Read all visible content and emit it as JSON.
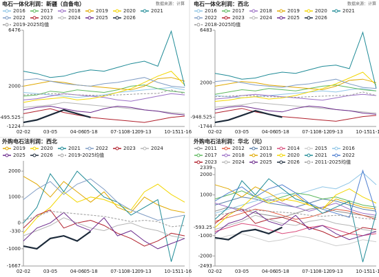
{
  "chart_data": [
    {
      "type": "line",
      "title": "电石一体化利润：新疆（自备电）",
      "source": "数据来源：计算",
      "categories": [
        "02-02",
        null,
        "03-05",
        null,
        "04-06",
        "05-18",
        null,
        "07-11",
        "08-12",
        "09-13",
        null,
        "10-15",
        "11-16"
      ],
      "ylim": [
        -1224,
        6476
      ],
      "yticks": [
        -1224,
        -495.525,
        2000,
        6476
      ],
      "series": [
        {
          "name": "2016",
          "color": "#8ec5e6",
          "values": [
            1500,
            1400,
            1300,
            1200,
            1100,
            1200,
            1300,
            1500,
            1600,
            1700,
            1800,
            1900,
            1700
          ]
        },
        {
          "name": "2017",
          "color": "#5cb85c",
          "values": [
            1200,
            1300,
            1600,
            1500,
            1700,
            1600,
            1500,
            1700,
            2000,
            2100,
            1800,
            1600,
            1500
          ]
        },
        {
          "name": "2018",
          "color": "#9b6fc6",
          "values": [
            900,
            1000,
            1200,
            1400,
            1300,
            1200,
            1100,
            900,
            800,
            1000,
            1200,
            1400,
            1300
          ]
        },
        {
          "name": "2019",
          "color": "#e0a800",
          "values": [
            2000,
            2200,
            2400,
            2300,
            2100,
            2000,
            1900,
            1800,
            1700,
            2000,
            2600,
            2700,
            2400
          ]
        },
        {
          "name": "2020",
          "color": "#f2d600",
          "values": [
            700,
            900,
            1000,
            1100,
            900,
            1000,
            1200,
            1500,
            1800,
            2300,
            2800,
            3200,
            2100
          ]
        },
        {
          "name": "2021",
          "color": "#1e8a96",
          "values": [
            3200,
            3000,
            2700,
            2800,
            3100,
            3300,
            3200,
            3500,
            3800,
            4000,
            3600,
            6400,
            2000
          ]
        },
        {
          "name": "2022",
          "color": "#7f9cc4",
          "values": [
            2500,
            2600,
            2400,
            2200,
            2100,
            2000,
            2200,
            2300,
            2500,
            2700,
            2300,
            2000,
            1900
          ]
        },
        {
          "name": "2023",
          "color": "#b01e2a",
          "values": [
            -200,
            0,
            200,
            -100,
            -300,
            -500,
            -600,
            -700,
            -800,
            -900,
            -700,
            -500,
            -400
          ]
        },
        {
          "name": "2024",
          "color": "#b5b5b5",
          "values": [
            300,
            400,
            500,
            700,
            600,
            500,
            400,
            300,
            200,
            100,
            0,
            -100,
            -200
          ]
        },
        {
          "name": "2025",
          "color": "#6b2a8c",
          "values": [
            100,
            300,
            400,
            200,
            0,
            -100,
            200,
            400,
            300,
            100,
            0,
            -200,
            -300
          ]
        },
        {
          "name": "2026",
          "color": "#1c2a3a",
          "values": [
            -900,
            -700,
            -300,
            100,
            -200,
            -495.525,
            null,
            null,
            null,
            null,
            null,
            null,
            null
          ]
        },
        {
          "name": "2019-2025均值",
          "color": "#999999",
          "dash": true,
          "values": [
            1300,
            1350,
            1400,
            1380,
            1300,
            1280,
            1250,
            1300,
            1350,
            1400,
            1420,
            1700,
            1400
          ]
        }
      ]
    },
    {
      "type": "line",
      "title": "电石一体化利润：西北",
      "source": "数据来源：计算",
      "categories": [
        "02-02",
        null,
        "03-05",
        null,
        "04-06",
        "05-18",
        null,
        "07-11",
        "08-12",
        "09-13",
        null,
        "10-15",
        "11-16"
      ],
      "ylim": [
        -1744,
        6483
      ],
      "yticks": [
        -1744,
        -948.525,
        2000,
        6483
      ],
      "series": [
        {
          "name": "2016",
          "color": "#8ec5e6",
          "values": [
            900,
            800,
            700,
            800,
            900,
            1000,
            1100,
            1200,
            1300,
            1200,
            1400,
            1500,
            1300
          ]
        },
        {
          "name": "2017",
          "color": "#5cb85c",
          "values": [
            1000,
            1200,
            1400,
            1300,
            1500,
            1400,
            1300,
            1500,
            1700,
            1800,
            1600,
            1400,
            1300
          ]
        },
        {
          "name": "2018",
          "color": "#9b6fc6",
          "values": [
            600,
            700,
            900,
            1000,
            900,
            800,
            700,
            600,
            500,
            700,
            900,
            1000,
            900
          ]
        },
        {
          "name": "2019",
          "color": "#e0a800",
          "values": [
            1700,
            1900,
            2100,
            2000,
            1800,
            1700,
            1600,
            1500,
            1400,
            1700,
            2200,
            2300,
            2000
          ]
        },
        {
          "name": "2020",
          "color": "#f2d600",
          "values": [
            400,
            500,
            700,
            800,
            600,
            700,
            900,
            1200,
            1500,
            1900,
            2400,
            2900,
            1800
          ]
        },
        {
          "name": "2021",
          "color": "#1e8a96",
          "values": [
            2800,
            2600,
            2300,
            2400,
            2700,
            2900,
            2800,
            3100,
            3400,
            3500,
            3200,
            6300,
            1500
          ]
        },
        {
          "name": "2022",
          "color": "#7f9cc4",
          "values": [
            2100,
            2200,
            2000,
            1800,
            1700,
            1600,
            1800,
            1900,
            2100,
            2300,
            1900,
            1600,
            1500
          ]
        },
        {
          "name": "2023",
          "color": "#b01e2a",
          "values": [
            -600,
            -400,
            -200,
            -500,
            -700,
            -900,
            -1000,
            -1100,
            -1200,
            -1300,
            -1100,
            -900,
            -800
          ]
        },
        {
          "name": "2024",
          "color": "#b5b5b5",
          "values": [
            -100,
            0,
            100,
            300,
            200,
            100,
            0,
            -100,
            -200,
            -300,
            -400,
            -500,
            -600
          ]
        },
        {
          "name": "2025",
          "color": "#6b2a8c",
          "values": [
            -300,
            -100,
            0,
            -200,
            -400,
            -500,
            -200,
            0,
            -100,
            -300,
            -400,
            -600,
            -700
          ]
        },
        {
          "name": "2026",
          "color": "#1c2a3a",
          "values": [
            -1400,
            -1200,
            -800,
            -400,
            -700,
            -948.525,
            null,
            null,
            null,
            null,
            null,
            null,
            null
          ]
        },
        {
          "name": "2018-2025均值",
          "color": "#999999",
          "dash": true,
          "values": [
            800,
            850,
            900,
            880,
            800,
            780,
            750,
            800,
            850,
            900,
            920,
            1200,
            900
          ]
        }
      ]
    },
    {
      "type": "line",
      "title": "外购电石法利润：西北",
      "categories": [
        "02-02",
        null,
        "03-05",
        null,
        "04-06",
        "05-18",
        null,
        "07-11",
        "08-12",
        "09-13",
        null,
        "10-15",
        "11-16"
      ],
      "ylim": [
        -1667,
        2400
      ],
      "yticks": [
        -1667,
        -1000,
        -330,
        0,
        1000,
        2000
      ],
      "series": [
        {
          "name": "2019",
          "color": "#e0a800",
          "values": [
            1800,
            1500,
            1000,
            1600,
            1200,
            800,
            1200,
            600,
            400,
            1000,
            700,
            500,
            400
          ]
        },
        {
          "name": "2020",
          "color": "#f2d600",
          "values": [
            -400,
            200,
            600,
            1200,
            800,
            1000,
            900,
            700,
            500,
            1200,
            1500,
            1100,
            800
          ]
        },
        {
          "name": "2021",
          "color": "#1e8a96",
          "values": [
            0,
            600,
            1900,
            1200,
            2000,
            1500,
            1000,
            800,
            300,
            600,
            900,
            -1500,
            300
          ]
        },
        {
          "name": "2022",
          "color": "#7f9cc4",
          "values": [
            900,
            1300,
            1600,
            1100,
            1500,
            1700,
            1300,
            800,
            500,
            300,
            100,
            200,
            300
          ]
        },
        {
          "name": "2023",
          "color": "#b01e2a",
          "values": [
            -200,
            300,
            500,
            -200,
            0,
            100,
            -100,
            -400,
            -600,
            -900,
            -700,
            -400,
            -500
          ]
        },
        {
          "name": "2024",
          "color": "#b5b5b5",
          "values": [
            -500,
            -300,
            -100,
            200,
            0,
            -200,
            -300,
            -100,
            0,
            -200,
            -300,
            -500,
            -600
          ]
        },
        {
          "name": "2025",
          "color": "#6b2a8c",
          "values": [
            -700,
            -200,
            0,
            400,
            -100,
            -300,
            200,
            -500,
            -300,
            -700,
            -1000,
            -800,
            -600
          ]
        },
        {
          "name": "2026",
          "color": "#1c2a3a",
          "values": [
            -900,
            -1000,
            -600,
            -500,
            -700,
            -330,
            null,
            null,
            null,
            null,
            null,
            null,
            null
          ]
        },
        {
          "name": "2019-2025均值",
          "color": "#999999",
          "dash": true,
          "values": [
            100,
            250,
            450,
            400,
            350,
            300,
            250,
            150,
            50,
            100,
            50,
            -150,
            -100
          ]
        }
      ]
    },
    {
      "type": "line",
      "title": "外购电石法利润：华北（元）",
      "categories": [
        "02-02",
        null,
        "03-05",
        null,
        "04-06",
        "05-18",
        null,
        "07-11",
        "08-12",
        "09-13",
        null,
        "10-15",
        "11-16"
      ],
      "ylim": [
        -2493,
        2339
      ],
      "yticks": [
        -2493,
        -2000,
        -1000,
        -593.25,
        1000,
        2000,
        2339
      ],
      "series": [
        {
          "name": "2011",
          "color": "#8c8c8c",
          "values": [
            200,
            400,
            300,
            100,
            0,
            -100,
            100,
            300,
            400,
            200,
            100,
            0,
            -100
          ]
        },
        {
          "name": "2012",
          "color": "#e2583e",
          "values": [
            -300,
            -100,
            100,
            300,
            200,
            0,
            -200,
            -100,
            100,
            300,
            200,
            0,
            -200
          ]
        },
        {
          "name": "2013",
          "color": "#5a7fa8",
          "values": [
            500,
            700,
            900,
            800,
            600,
            500,
            400,
            600,
            800,
            700,
            500,
            300,
            200
          ]
        },
        {
          "name": "2014",
          "color": "#d94a7a",
          "values": [
            -800,
            -600,
            -400,
            -500,
            -700,
            -900,
            -800,
            -600,
            -500,
            -700,
            -900,
            -1000,
            -900
          ]
        },
        {
          "name": "2015",
          "color": "#cccccc",
          "values": [
            -1200,
            -1000,
            -900,
            -1100,
            -1300,
            -1200,
            -1000,
            -1100,
            -1300,
            -1500,
            -1400,
            -1200,
            -1300
          ]
        },
        {
          "name": "2016",
          "color": "#8ec5e6",
          "values": [
            100,
            300,
            500,
            700,
            900,
            1100,
            1000,
            1200,
            1400,
            1300,
            1600,
            2100,
            1500
          ]
        },
        {
          "name": "2017",
          "color": "#5cb85c",
          "values": [
            800,
            1000,
            1200,
            900,
            700,
            900,
            1100,
            1000,
            800,
            900,
            700,
            500,
            400
          ]
        },
        {
          "name": "2018",
          "color": "#9b6fc6",
          "values": [
            600,
            400,
            200,
            500,
            800,
            600,
            400,
            200,
            400,
            600,
            300,
            100,
            0
          ]
        },
        {
          "name": "2019",
          "color": "#e0a800",
          "values": [
            1500,
            1300,
            900,
            1400,
            1100,
            700,
            1000,
            500,
            300,
            800,
            600,
            400,
            300
          ]
        },
        {
          "name": "2020",
          "color": "#f2d600",
          "values": [
            -600,
            0,
            400,
            1000,
            600,
            800,
            700,
            500,
            300,
            1000,
            1300,
            900,
            600
          ]
        },
        {
          "name": "2021",
          "color": "#1e8a96",
          "values": [
            -200,
            400,
            1700,
            1000,
            1800,
            1300,
            800,
            600,
            100,
            400,
            700,
            -2300,
            100
          ]
        },
        {
          "name": "2022",
          "color": "#4f7fd0",
          "values": [
            700,
            1100,
            1400,
            900,
            1300,
            1500,
            1100,
            600,
            300,
            100,
            -100,
            2200,
            100
          ]
        },
        {
          "name": "2023",
          "color": "#b01e2a",
          "values": [
            -400,
            100,
            300,
            -400,
            -200,
            -100,
            -300,
            -600,
            -800,
            -1100,
            -900,
            -600,
            -700
          ]
        },
        {
          "name": "2024",
          "color": "#b5b5b5",
          "values": [
            -700,
            -500,
            -300,
            0,
            -200,
            -400,
            -500,
            -300,
            -200,
            -400,
            -500,
            -700,
            -800
          ]
        },
        {
          "name": "2025",
          "color": "#6b2a8c",
          "values": [
            -900,
            -400,
            -200,
            200,
            -300,
            -500,
            0,
            -700,
            -500,
            -900,
            -1200,
            -1000,
            -800
          ]
        },
        {
          "name": "2026",
          "color": "#1c2a3a",
          "values": [
            -1100,
            -1200,
            -800,
            -700,
            -900,
            -593.25,
            null,
            null,
            null,
            null,
            null,
            null,
            null
          ]
        },
        {
          "name": "2011-2025均值",
          "color": "#999999",
          "dash": true,
          "values": [
            0,
            100,
            300,
            250,
            200,
            150,
            100,
            0,
            -50,
            0,
            -50,
            -150,
            -200
          ]
        }
      ]
    }
  ]
}
